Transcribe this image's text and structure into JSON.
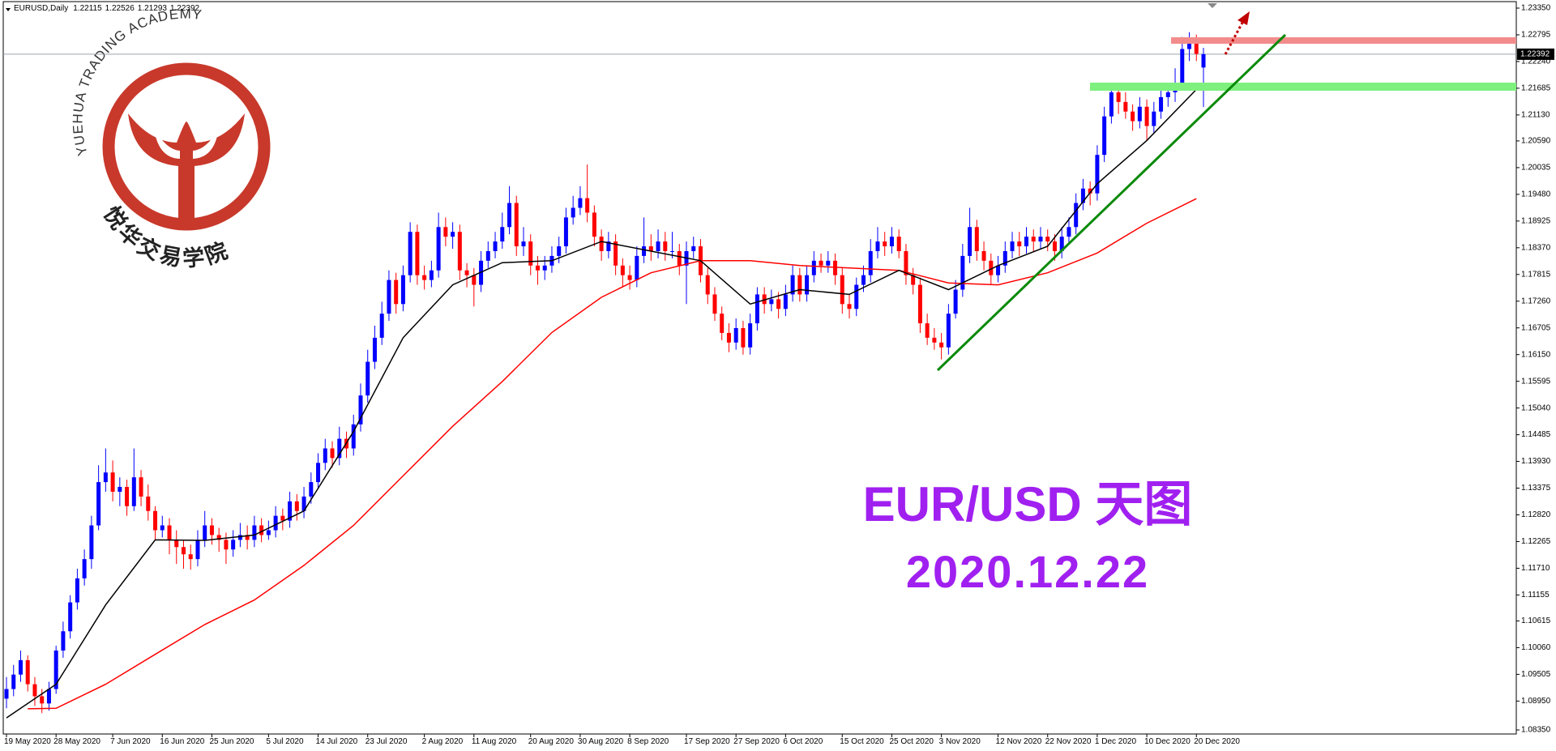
{
  "chart_data": {
    "type": "candlestick",
    "symbol": "EURUSD,Daily",
    "up_color": "#0000ff",
    "down_color": "#ff0000",
    "ylim": [
      1.0835,
      1.2335
    ],
    "yticks": [
      {
        "value": 1.2335,
        "label": "1.23350"
      },
      1.22795,
      {
        "value": 1.2224,
        "label": "1.22240"
      },
      1.21685,
      {
        "value": 1.2113,
        "label": "1.21130"
      },
      {
        "value": 1.2059,
        "label": "1.20590"
      },
      1.20035,
      {
        "value": 1.1948,
        "label": "1.19480"
      },
      1.18925,
      {
        "value": 1.1837,
        "label": "1.18370"
      },
      1.17815,
      {
        "value": 1.1726,
        "label": "1.17260"
      },
      1.16705,
      {
        "value": 1.1615,
        "label": "1.16150"
      },
      1.15595,
      {
        "value": 1.1504,
        "label": "1.15040"
      },
      1.14485,
      {
        "value": 1.1393,
        "label": "1.13930"
      },
      1.13375,
      {
        "value": 1.1282,
        "label": "1.12820"
      },
      1.12265,
      {
        "value": 1.1171,
        "label": "1.11710"
      },
      1.11155,
      1.10615,
      {
        "value": 1.1006,
        "label": "1.10060"
      },
      1.09505,
      {
        "value": 1.0895,
        "label": "1.08950"
      },
      {
        "value": 1.0835,
        "label": "1.08350"
      }
    ],
    "categories": [
      "19 May 2020",
      null,
      null,
      null,
      null,
      null,
      null,
      "28 May 2020",
      null,
      null,
      null,
      null,
      null,
      null,
      null,
      "7 Jun 2020",
      null,
      null,
      null,
      null,
      null,
      null,
      "16 Jun 2020",
      null,
      null,
      null,
      null,
      null,
      null,
      "25 Jun 2020",
      null,
      null,
      null,
      null,
      null,
      null,
      null,
      "5 Jul 2020",
      null,
      null,
      null,
      null,
      null,
      null,
      "14 Jul 2020",
      null,
      null,
      null,
      null,
      null,
      null,
      "23 Jul 2020",
      null,
      null,
      null,
      null,
      null,
      null,
      null,
      "2 Aug 2020",
      null,
      null,
      null,
      null,
      null,
      null,
      "11 Aug 2020",
      null,
      null,
      null,
      null,
      null,
      null,
      null,
      "20 Aug 2020",
      null,
      null,
      null,
      null,
      null,
      null,
      "30 Aug 2020",
      null,
      null,
      null,
      null,
      null,
      null,
      "8 Sep 2020",
      null,
      null,
      null,
      null,
      null,
      null,
      null,
      "17 Sep 2020",
      null,
      null,
      null,
      null,
      null,
      null,
      "27 Sep 2020",
      null,
      null,
      null,
      null,
      null,
      null,
      "6 Oct 2020",
      null,
      null,
      null,
      null,
      null,
      null,
      null,
      "15 Oct 2020",
      null,
      null,
      null,
      null,
      null,
      null,
      "25 Oct 2020",
      null,
      null,
      null,
      null,
      null,
      null,
      "3 Nov 2020",
      null,
      null,
      null,
      null,
      null,
      null,
      null,
      "12 Nov 2020",
      null,
      null,
      null,
      null,
      null,
      null,
      "22 Nov 2020",
      null,
      null,
      null,
      null,
      null,
      null,
      "1 Dec 2020",
      null,
      null,
      null,
      null,
      null,
      null,
      "10 Dec 2020",
      null,
      null,
      null,
      null,
      null,
      null,
      "20 Dec 2020",
      null
    ],
    "ohlc": [
      [
        1.09,
        1.0945,
        1.088,
        1.092
      ],
      [
        1.092,
        1.097,
        1.0905,
        1.095
      ],
      [
        1.095,
        1.1,
        1.0935,
        1.098
      ],
      [
        1.098,
        1.099,
        1.0915,
        1.093
      ],
      [
        1.093,
        1.0945,
        1.0885,
        1.0905
      ],
      [
        1.0905,
        1.092,
        1.087,
        1.089
      ],
      [
        1.089,
        1.0935,
        1.0875,
        1.092
      ],
      [
        1.092,
        1.101,
        1.091,
        1.1
      ],
      [
        1.1,
        1.106,
        1.0985,
        1.104
      ],
      [
        1.104,
        1.1115,
        1.1025,
        1.11
      ],
      [
        1.11,
        1.117,
        1.1085,
        1.115
      ],
      [
        1.115,
        1.121,
        1.1135,
        1.119
      ],
      [
        1.119,
        1.128,
        1.117,
        1.126
      ],
      [
        1.126,
        1.1385,
        1.125,
        1.135
      ],
      [
        1.135,
        1.142,
        1.133,
        1.137
      ],
      [
        1.137,
        1.1395,
        1.131,
        1.133
      ],
      [
        1.133,
        1.136,
        1.13,
        1.134
      ],
      [
        1.134,
        1.1355,
        1.128,
        1.13
      ],
      [
        1.13,
        1.142,
        1.129,
        1.136
      ],
      [
        1.136,
        1.1375,
        1.13,
        1.132
      ],
      [
        1.132,
        1.1345,
        1.127,
        1.129
      ],
      [
        1.129,
        1.13,
        1.123,
        1.125
      ],
      [
        1.125,
        1.128,
        1.1235,
        1.126
      ],
      [
        1.126,
        1.1275,
        1.12,
        1.123
      ],
      [
        1.123,
        1.125,
        1.118,
        1.1215
      ],
      [
        1.1215,
        1.123,
        1.117,
        1.12
      ],
      [
        1.12,
        1.122,
        1.1168,
        1.119
      ],
      [
        1.119,
        1.125,
        1.1175,
        1.123
      ],
      [
        1.123,
        1.129,
        1.1215,
        1.126
      ],
      [
        1.126,
        1.1275,
        1.122,
        1.124
      ],
      [
        1.124,
        1.1255,
        1.1205,
        1.123
      ],
      [
        1.123,
        1.1245,
        1.118,
        1.121
      ],
      [
        1.121,
        1.125,
        1.1195,
        1.123
      ],
      [
        1.123,
        1.1265,
        1.1215,
        1.124
      ],
      [
        1.124,
        1.126,
        1.121,
        1.123
      ],
      [
        1.123,
        1.128,
        1.1215,
        1.126
      ],
      [
        1.126,
        1.1275,
        1.1225,
        1.124
      ],
      [
        1.124,
        1.127,
        1.123,
        1.125
      ],
      [
        1.125,
        1.13,
        1.1235,
        1.128
      ],
      [
        1.128,
        1.1295,
        1.125,
        1.127
      ],
      [
        1.127,
        1.133,
        1.1255,
        1.131
      ],
      [
        1.131,
        1.1325,
        1.127,
        1.129
      ],
      [
        1.129,
        1.134,
        1.1275,
        1.132
      ],
      [
        1.132,
        1.137,
        1.1305,
        1.135
      ],
      [
        1.135,
        1.141,
        1.1335,
        1.139
      ],
      [
        1.139,
        1.144,
        1.1375,
        1.142
      ],
      [
        1.142,
        1.1435,
        1.138,
        1.14
      ],
      [
        1.14,
        1.1465,
        1.1385,
        1.144
      ],
      [
        1.144,
        1.1455,
        1.14,
        1.142
      ],
      [
        1.142,
        1.149,
        1.1405,
        1.147
      ],
      [
        1.147,
        1.1555,
        1.1455,
        1.153
      ],
      [
        1.153,
        1.1625,
        1.1515,
        1.16
      ],
      [
        1.16,
        1.1675,
        1.1585,
        1.165
      ],
      [
        1.165,
        1.1725,
        1.1635,
        1.17
      ],
      [
        1.17,
        1.179,
        1.1685,
        1.177
      ],
      [
        1.177,
        1.1785,
        1.17,
        1.172
      ],
      [
        1.172,
        1.18,
        1.1705,
        1.178
      ],
      [
        1.178,
        1.189,
        1.1765,
        1.187
      ],
      [
        1.187,
        1.1885,
        1.176,
        1.178
      ],
      [
        1.178,
        1.18,
        1.175,
        1.177
      ],
      [
        1.177,
        1.181,
        1.1755,
        1.179
      ],
      [
        1.179,
        1.191,
        1.1775,
        1.188
      ],
      [
        1.188,
        1.19,
        1.184,
        1.186
      ],
      [
        1.186,
        1.189,
        1.1835,
        1.187
      ],
      [
        1.187,
        1.1885,
        1.177,
        1.179
      ],
      [
        1.179,
        1.1805,
        1.1755,
        1.178
      ],
      [
        1.178,
        1.1795,
        1.1715,
        1.176
      ],
      [
        1.176,
        1.183,
        1.1745,
        1.181
      ],
      [
        1.181,
        1.185,
        1.1795,
        1.183
      ],
      [
        1.183,
        1.187,
        1.1815,
        1.185
      ],
      [
        1.185,
        1.191,
        1.1835,
        1.188
      ],
      [
        1.188,
        1.1965,
        1.1865,
        1.193
      ],
      [
        1.193,
        1.1945,
        1.182,
        1.184
      ],
      [
        1.184,
        1.188,
        1.182,
        1.185
      ],
      [
        1.185,
        1.1865,
        1.178,
        1.18
      ],
      [
        1.18,
        1.182,
        1.176,
        1.179
      ],
      [
        1.179,
        1.182,
        1.177,
        1.18
      ],
      [
        1.18,
        1.184,
        1.1785,
        1.182
      ],
      [
        1.182,
        1.186,
        1.1805,
        1.184
      ],
      [
        1.184,
        1.192,
        1.1825,
        1.19
      ],
      [
        1.19,
        1.1945,
        1.1885,
        1.192
      ],
      [
        1.192,
        1.1965,
        1.1905,
        1.194
      ],
      [
        1.194,
        1.201,
        1.189,
        1.191
      ],
      [
        1.191,
        1.1925,
        1.184,
        1.186
      ],
      [
        1.186,
        1.1875,
        1.181,
        1.183
      ],
      [
        1.183,
        1.187,
        1.1815,
        1.185
      ],
      [
        1.185,
        1.1865,
        1.178,
        1.18
      ],
      [
        1.18,
        1.1815,
        1.1755,
        1.178
      ],
      [
        1.178,
        1.18,
        1.175,
        1.177
      ],
      [
        1.177,
        1.184,
        1.1755,
        1.182
      ],
      [
        1.182,
        1.19,
        1.1805,
        1.184
      ],
      [
        1.184,
        1.1865,
        1.181,
        1.183
      ],
      [
        1.183,
        1.1875,
        1.1815,
        1.185
      ],
      [
        1.185,
        1.187,
        1.181,
        1.183
      ],
      [
        1.183,
        1.187,
        1.1815,
        1.183
      ],
      [
        1.183,
        1.1845,
        1.178,
        1.18
      ],
      [
        1.18,
        1.185,
        1.172,
        1.183
      ],
      [
        1.183,
        1.186,
        1.1815,
        1.184
      ],
      [
        1.184,
        1.1855,
        1.1765,
        1.178
      ],
      [
        1.178,
        1.1795,
        1.172,
        1.174
      ],
      [
        1.174,
        1.1755,
        1.1685,
        1.17
      ],
      [
        1.17,
        1.1715,
        1.1645,
        1.166
      ],
      [
        1.166,
        1.168,
        1.162,
        1.164
      ],
      [
        1.164,
        1.169,
        1.1625,
        1.167
      ],
      [
        1.167,
        1.1685,
        1.1615,
        1.163
      ],
      [
        1.163,
        1.17,
        1.1615,
        1.168
      ],
      [
        1.168,
        1.1755,
        1.1665,
        1.174
      ],
      [
        1.174,
        1.1755,
        1.17,
        1.172
      ],
      [
        1.172,
        1.175,
        1.1705,
        1.173
      ],
      [
        1.173,
        1.1745,
        1.169,
        1.171
      ],
      [
        1.171,
        1.176,
        1.1695,
        1.174
      ],
      [
        1.174,
        1.18,
        1.1725,
        1.178
      ],
      [
        1.178,
        1.1795,
        1.1725,
        1.174
      ],
      [
        1.174,
        1.18,
        1.1725,
        1.178
      ],
      [
        1.178,
        1.183,
        1.1765,
        1.181
      ],
      [
        1.181,
        1.1825,
        1.1785,
        1.18
      ],
      [
        1.18,
        1.183,
        1.1785,
        1.181
      ],
      [
        1.181,
        1.1825,
        1.176,
        1.178
      ],
      [
        1.178,
        1.1795,
        1.17,
        1.172
      ],
      [
        1.172,
        1.174,
        1.169,
        1.171
      ],
      [
        1.171,
        1.1775,
        1.1695,
        1.176
      ],
      [
        1.176,
        1.18,
        1.1745,
        1.178
      ],
      [
        1.178,
        1.1855,
        1.1765,
        1.183
      ],
      [
        1.183,
        1.188,
        1.1815,
        1.185
      ],
      [
        1.185,
        1.187,
        1.182,
        1.184
      ],
      [
        1.184,
        1.188,
        1.1825,
        1.186
      ],
      [
        1.186,
        1.1875,
        1.1815,
        1.183
      ],
      [
        1.183,
        1.1845,
        1.176,
        1.178
      ],
      [
        1.178,
        1.1795,
        1.174,
        1.176
      ],
      [
        1.176,
        1.1775,
        1.166,
        1.168
      ],
      [
        1.168,
        1.17,
        1.1635,
        1.165
      ],
      [
        1.165,
        1.167,
        1.1625,
        1.164
      ],
      [
        1.164,
        1.166,
        1.1605,
        1.163
      ],
      [
        1.163,
        1.172,
        1.1615,
        1.17
      ],
      [
        1.17,
        1.177,
        1.169,
        1.175
      ],
      [
        1.175,
        1.1845,
        1.1735,
        1.182
      ],
      [
        1.182,
        1.192,
        1.1805,
        1.188
      ],
      [
        1.188,
        1.1895,
        1.181,
        1.183
      ],
      [
        1.183,
        1.185,
        1.179,
        1.181
      ],
      [
        1.181,
        1.1825,
        1.176,
        1.178
      ],
      [
        1.178,
        1.182,
        1.1765,
        1.18
      ],
      [
        1.18,
        1.185,
        1.1785,
        1.183
      ],
      [
        1.183,
        1.187,
        1.1815,
        1.185
      ],
      [
        1.185,
        1.187,
        1.182,
        1.184
      ],
      [
        1.184,
        1.188,
        1.1825,
        1.186
      ],
      [
        1.186,
        1.1875,
        1.183,
        1.185
      ],
      [
        1.185,
        1.188,
        1.1835,
        1.186
      ],
      [
        1.186,
        1.1875,
        1.183,
        1.185
      ],
      [
        1.185,
        1.1865,
        1.181,
        1.183
      ],
      [
        1.183,
        1.188,
        1.1815,
        1.186
      ],
      [
        1.186,
        1.19,
        1.1845,
        1.188
      ],
      [
        1.188,
        1.195,
        1.1865,
        1.193
      ],
      [
        1.193,
        1.198,
        1.1915,
        1.196
      ],
      [
        1.196,
        1.1975,
        1.1925,
        1.195
      ],
      [
        1.195,
        1.205,
        1.1935,
        1.203
      ],
      [
        1.203,
        1.213,
        1.2015,
        1.211
      ],
      [
        1.211,
        1.218,
        1.2095,
        1.216
      ],
      [
        1.216,
        1.2175,
        1.2115,
        1.214
      ],
      [
        1.214,
        1.216,
        1.2105,
        1.212
      ],
      [
        1.212,
        1.2135,
        1.208,
        1.21
      ],
      [
        1.21,
        1.215,
        1.2085,
        1.213
      ],
      [
        1.213,
        1.2145,
        1.206,
        1.209
      ],
      [
        1.209,
        1.214,
        1.2075,
        1.212
      ],
      [
        1.212,
        1.217,
        1.2105,
        1.215
      ],
      [
        1.215,
        1.218,
        1.213,
        1.216
      ],
      [
        1.216,
        1.221,
        1.214,
        1.218
      ],
      [
        1.218,
        1.2275,
        1.2165,
        1.225
      ],
      [
        1.225,
        1.2285,
        1.2225,
        1.227
      ],
      [
        1.227,
        1.228,
        1.2225,
        1.224
      ],
      [
        1.22115,
        1.22526,
        1.21293,
        1.22392
      ]
    ],
    "ma_fast": {
      "color": "#000000",
      "x": [
        0,
        7,
        14,
        21,
        28,
        35,
        42,
        49,
        56,
        63,
        70,
        77,
        84,
        91,
        98,
        105,
        112,
        119,
        126,
        133,
        140,
        147,
        154,
        161,
        168
      ],
      "values": [
        1.086,
        1.093,
        1.1095,
        1.123,
        1.1229,
        1.124,
        1.129,
        1.1455,
        1.165,
        1.176,
        1.1806,
        1.181,
        1.185,
        1.183,
        1.181,
        1.172,
        1.175,
        1.174,
        1.179,
        1.175,
        1.18,
        1.184,
        1.197,
        1.206,
        1.2166
      ]
    },
    "ma_slow": {
      "color": "#ff0000",
      "x": [
        3,
        7,
        14,
        21,
        28,
        35,
        42,
        49,
        56,
        63,
        70,
        77,
        84,
        91,
        98,
        105,
        112,
        119,
        126,
        133,
        140,
        147,
        154,
        161,
        168
      ],
      "values": [
        1.0879,
        1.088,
        1.093,
        1.0992,
        1.1054,
        1.1105,
        1.1177,
        1.126,
        1.1363,
        1.1466,
        1.1559,
        1.1661,
        1.1734,
        1.1785,
        1.181,
        1.181,
        1.18,
        1.1795,
        1.179,
        1.1764,
        1.176,
        1.1785,
        1.1826,
        1.1888,
        1.1939
      ]
    },
    "watermark": {
      "title": "EUR/USD 天图",
      "date": "2020.12.22"
    },
    "logo": {
      "top": "YUEHUA TRADING ACADEMY",
      "bottom": "悦华交易学院"
    }
  }
}
